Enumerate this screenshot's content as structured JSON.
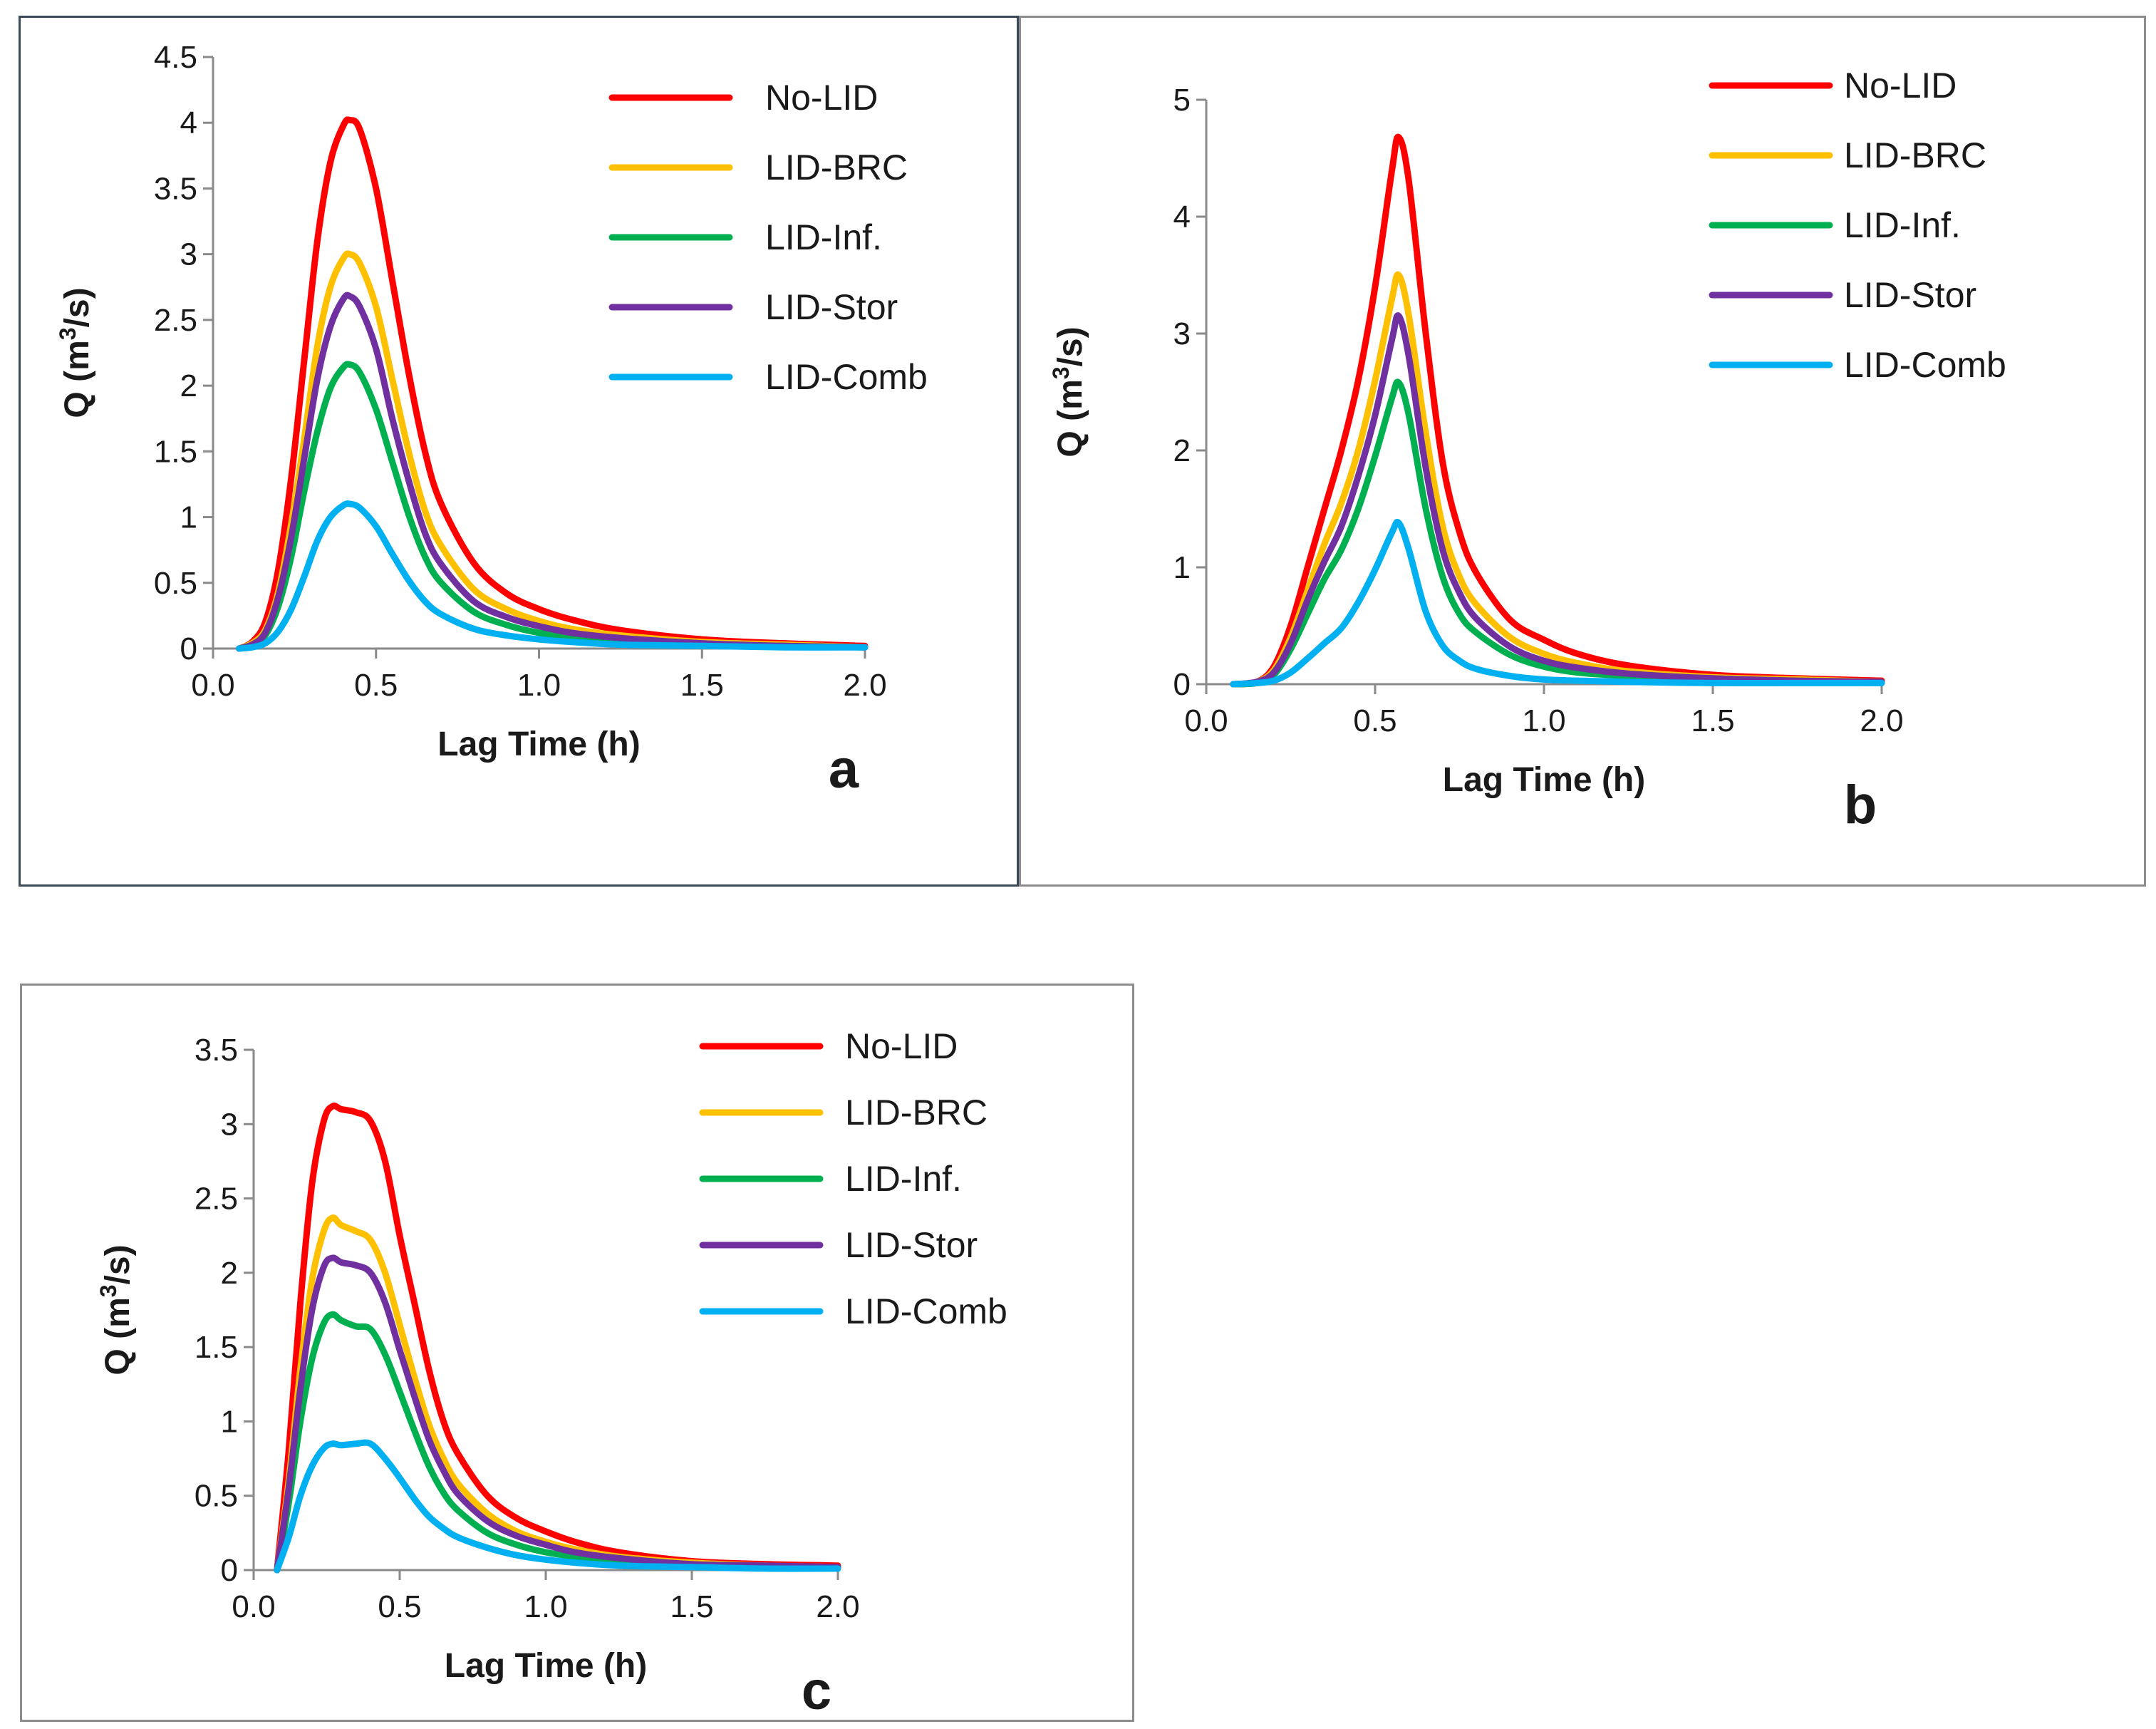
{
  "chart_data": [
    {
      "type": "line",
      "panel_label": "a",
      "xlabel": "Lag Time (h)",
      "ylabel_prefix": "Q (m",
      "ylabel_sup": "3",
      "ylabel_suffix": "/s)",
      "xlim": [
        0,
        2
      ],
      "ylim": [
        0,
        4.5
      ],
      "xticks": [
        "0.0",
        "0.5",
        "1.0",
        "1.5",
        "2.0"
      ],
      "yticks": [
        "0",
        "0.5",
        "1",
        "1.5",
        "2",
        "2.5",
        "3",
        "3.5",
        "4",
        "4.5"
      ],
      "legend_position": "top-right",
      "x": [
        0.08,
        0.12,
        0.16,
        0.2,
        0.24,
        0.28,
        0.32,
        0.36,
        0.4,
        0.42,
        0.45,
        0.5,
        0.55,
        0.6,
        0.65,
        0.7,
        0.8,
        0.9,
        1.0,
        1.1,
        1.25,
        1.5,
        1.75,
        2.0
      ],
      "series": [
        {
          "name": "No-LID",
          "color": "#ff0000",
          "values": [
            0,
            0.05,
            0.2,
            0.6,
            1.3,
            2.2,
            3.1,
            3.7,
            3.98,
            4.02,
            3.95,
            3.5,
            2.8,
            2.1,
            1.5,
            1.1,
            0.65,
            0.42,
            0.3,
            0.22,
            0.14,
            0.07,
            0.04,
            0.02
          ]
        },
        {
          "name": "LID-BRC",
          "color": "#ffc000",
          "values": [
            0,
            0.04,
            0.14,
            0.43,
            0.95,
            1.6,
            2.3,
            2.75,
            2.97,
            3.0,
            2.93,
            2.6,
            2.05,
            1.5,
            1.05,
            0.78,
            0.45,
            0.3,
            0.21,
            0.15,
            0.1,
            0.05,
            0.03,
            0.01
          ]
        },
        {
          "name": "LID-Inf.",
          "color": "#00b050",
          "values": [
            0,
            0.03,
            0.1,
            0.32,
            0.7,
            1.2,
            1.65,
            1.98,
            2.14,
            2.16,
            2.1,
            1.82,
            1.42,
            1.02,
            0.7,
            0.5,
            0.28,
            0.18,
            0.12,
            0.09,
            0.06,
            0.03,
            0.02,
            0.01
          ]
        },
        {
          "name": "LID-Stor",
          "color": "#7030a0",
          "values": [
            0,
            0.03,
            0.12,
            0.39,
            0.85,
            1.45,
            2.05,
            2.45,
            2.66,
            2.68,
            2.6,
            2.28,
            1.75,
            1.28,
            0.88,
            0.64,
            0.36,
            0.24,
            0.17,
            0.12,
            0.08,
            0.04,
            0.02,
            0.01
          ]
        },
        {
          "name": "LID-Comb",
          "color": "#00b0f0",
          "values": [
            0,
            0.01,
            0.04,
            0.13,
            0.3,
            0.55,
            0.82,
            1.0,
            1.09,
            1.1,
            1.07,
            0.93,
            0.72,
            0.52,
            0.36,
            0.26,
            0.15,
            0.1,
            0.07,
            0.05,
            0.03,
            0.02,
            0.01,
            0.01
          ]
        }
      ]
    },
    {
      "type": "line",
      "panel_label": "b",
      "xlabel": "Lag Time (h)",
      "ylabel_prefix": "Q (m",
      "ylabel_sup": "3",
      "ylabel_suffix": "/s)",
      "xlim": [
        0,
        2
      ],
      "ylim": [
        0,
        5
      ],
      "xticks": [
        "0.0",
        "0.5",
        "1.0",
        "1.5",
        "2.0"
      ],
      "yticks": [
        "0",
        "1",
        "2",
        "3",
        "4",
        "5"
      ],
      "legend_position": "top-right",
      "x": [
        0.08,
        0.15,
        0.2,
        0.25,
        0.3,
        0.35,
        0.4,
        0.45,
        0.5,
        0.55,
        0.57,
        0.6,
        0.65,
        0.7,
        0.75,
        0.8,
        0.9,
        1.0,
        1.1,
        1.25,
        1.5,
        1.75,
        2.0
      ],
      "series": [
        {
          "name": "No-LID",
          "color": "#ff0000",
          "values": [
            0,
            0.02,
            0.15,
            0.5,
            1.0,
            1.5,
            2.0,
            2.6,
            3.4,
            4.4,
            4.68,
            4.3,
            3.0,
            1.9,
            1.3,
            0.95,
            0.55,
            0.38,
            0.26,
            0.16,
            0.08,
            0.05,
            0.03
          ]
        },
        {
          "name": "LID-BRC",
          "color": "#ffc000",
          "values": [
            0,
            0.02,
            0.12,
            0.4,
            0.8,
            1.2,
            1.55,
            2.0,
            2.6,
            3.3,
            3.5,
            3.15,
            2.15,
            1.35,
            0.92,
            0.68,
            0.4,
            0.26,
            0.18,
            0.11,
            0.06,
            0.04,
            0.02
          ]
        },
        {
          "name": "LID-Inf.",
          "color": "#00b050",
          "values": [
            0,
            0.01,
            0.08,
            0.3,
            0.6,
            0.9,
            1.15,
            1.5,
            1.95,
            2.45,
            2.58,
            2.3,
            1.5,
            0.92,
            0.6,
            0.44,
            0.25,
            0.15,
            0.1,
            0.07,
            0.04,
            0.02,
            0.01
          ]
        },
        {
          "name": "LID-Stor",
          "color": "#7030a0",
          "values": [
            0,
            0.02,
            0.1,
            0.35,
            0.72,
            1.05,
            1.35,
            1.78,
            2.3,
            2.95,
            3.15,
            2.8,
            1.85,
            1.15,
            0.78,
            0.56,
            0.32,
            0.2,
            0.14,
            0.09,
            0.05,
            0.03,
            0.02
          ]
        },
        {
          "name": "LID-Comb",
          "color": "#00b0f0",
          "values": [
            0,
            0.01,
            0.03,
            0.1,
            0.22,
            0.35,
            0.48,
            0.7,
            0.98,
            1.3,
            1.38,
            1.15,
            0.62,
            0.33,
            0.2,
            0.13,
            0.07,
            0.04,
            0.03,
            0.02,
            0.01,
            0.01,
            0.01
          ]
        }
      ]
    },
    {
      "type": "line",
      "panel_label": "c",
      "xlabel": "Lag Time (h)",
      "ylabel_prefix": "Q (m",
      "ylabel_sup": "3",
      "ylabel_suffix": "/s)",
      "xlim": [
        0,
        2
      ],
      "ylim": [
        0,
        3.5
      ],
      "xticks": [
        "0.0",
        "0.5",
        "1.0",
        "1.5",
        "2.0"
      ],
      "yticks": [
        "0",
        "0.5",
        "1",
        "1.5",
        "2",
        "2.5",
        "3",
        "3.5"
      ],
      "legend_position": "top-right",
      "x": [
        0.08,
        0.12,
        0.16,
        0.2,
        0.24,
        0.27,
        0.3,
        0.35,
        0.4,
        0.45,
        0.5,
        0.55,
        0.6,
        0.65,
        0.7,
        0.8,
        0.9,
        1.0,
        1.1,
        1.25,
        1.5,
        1.75,
        2.0
      ],
      "series": [
        {
          "name": "No-LID",
          "color": "#ff0000",
          "values": [
            0,
            0.8,
            1.8,
            2.6,
            3.02,
            3.12,
            3.1,
            3.08,
            3.02,
            2.75,
            2.25,
            1.8,
            1.35,
            1.0,
            0.78,
            0.5,
            0.35,
            0.26,
            0.19,
            0.12,
            0.06,
            0.04,
            0.03
          ]
        },
        {
          "name": "LID-BRC",
          "color": "#ffc000",
          "values": [
            0,
            0.6,
            1.35,
            1.95,
            2.28,
            2.37,
            2.32,
            2.28,
            2.22,
            2.0,
            1.65,
            1.3,
            0.98,
            0.75,
            0.58,
            0.38,
            0.26,
            0.19,
            0.14,
            0.09,
            0.05,
            0.03,
            0.02
          ]
        },
        {
          "name": "LID-Inf.",
          "color": "#00b050",
          "values": [
            0,
            0.45,
            1.0,
            1.42,
            1.66,
            1.72,
            1.68,
            1.64,
            1.62,
            1.45,
            1.2,
            0.94,
            0.7,
            0.52,
            0.4,
            0.25,
            0.17,
            0.12,
            0.09,
            0.06,
            0.03,
            0.02,
            0.01
          ]
        },
        {
          "name": "LID-Stor",
          "color": "#7030a0",
          "values": [
            0,
            0.55,
            1.22,
            1.75,
            2.04,
            2.1,
            2.07,
            2.05,
            2.0,
            1.8,
            1.48,
            1.17,
            0.88,
            0.67,
            0.51,
            0.33,
            0.23,
            0.17,
            0.12,
            0.08,
            0.04,
            0.03,
            0.02
          ]
        },
        {
          "name": "LID-Comb",
          "color": "#00b0f0",
          "values": [
            0,
            0.22,
            0.5,
            0.7,
            0.82,
            0.85,
            0.84,
            0.85,
            0.85,
            0.75,
            0.62,
            0.48,
            0.36,
            0.28,
            0.22,
            0.15,
            0.1,
            0.07,
            0.05,
            0.03,
            0.02,
            0.01,
            0.01
          ]
        }
      ]
    }
  ]
}
